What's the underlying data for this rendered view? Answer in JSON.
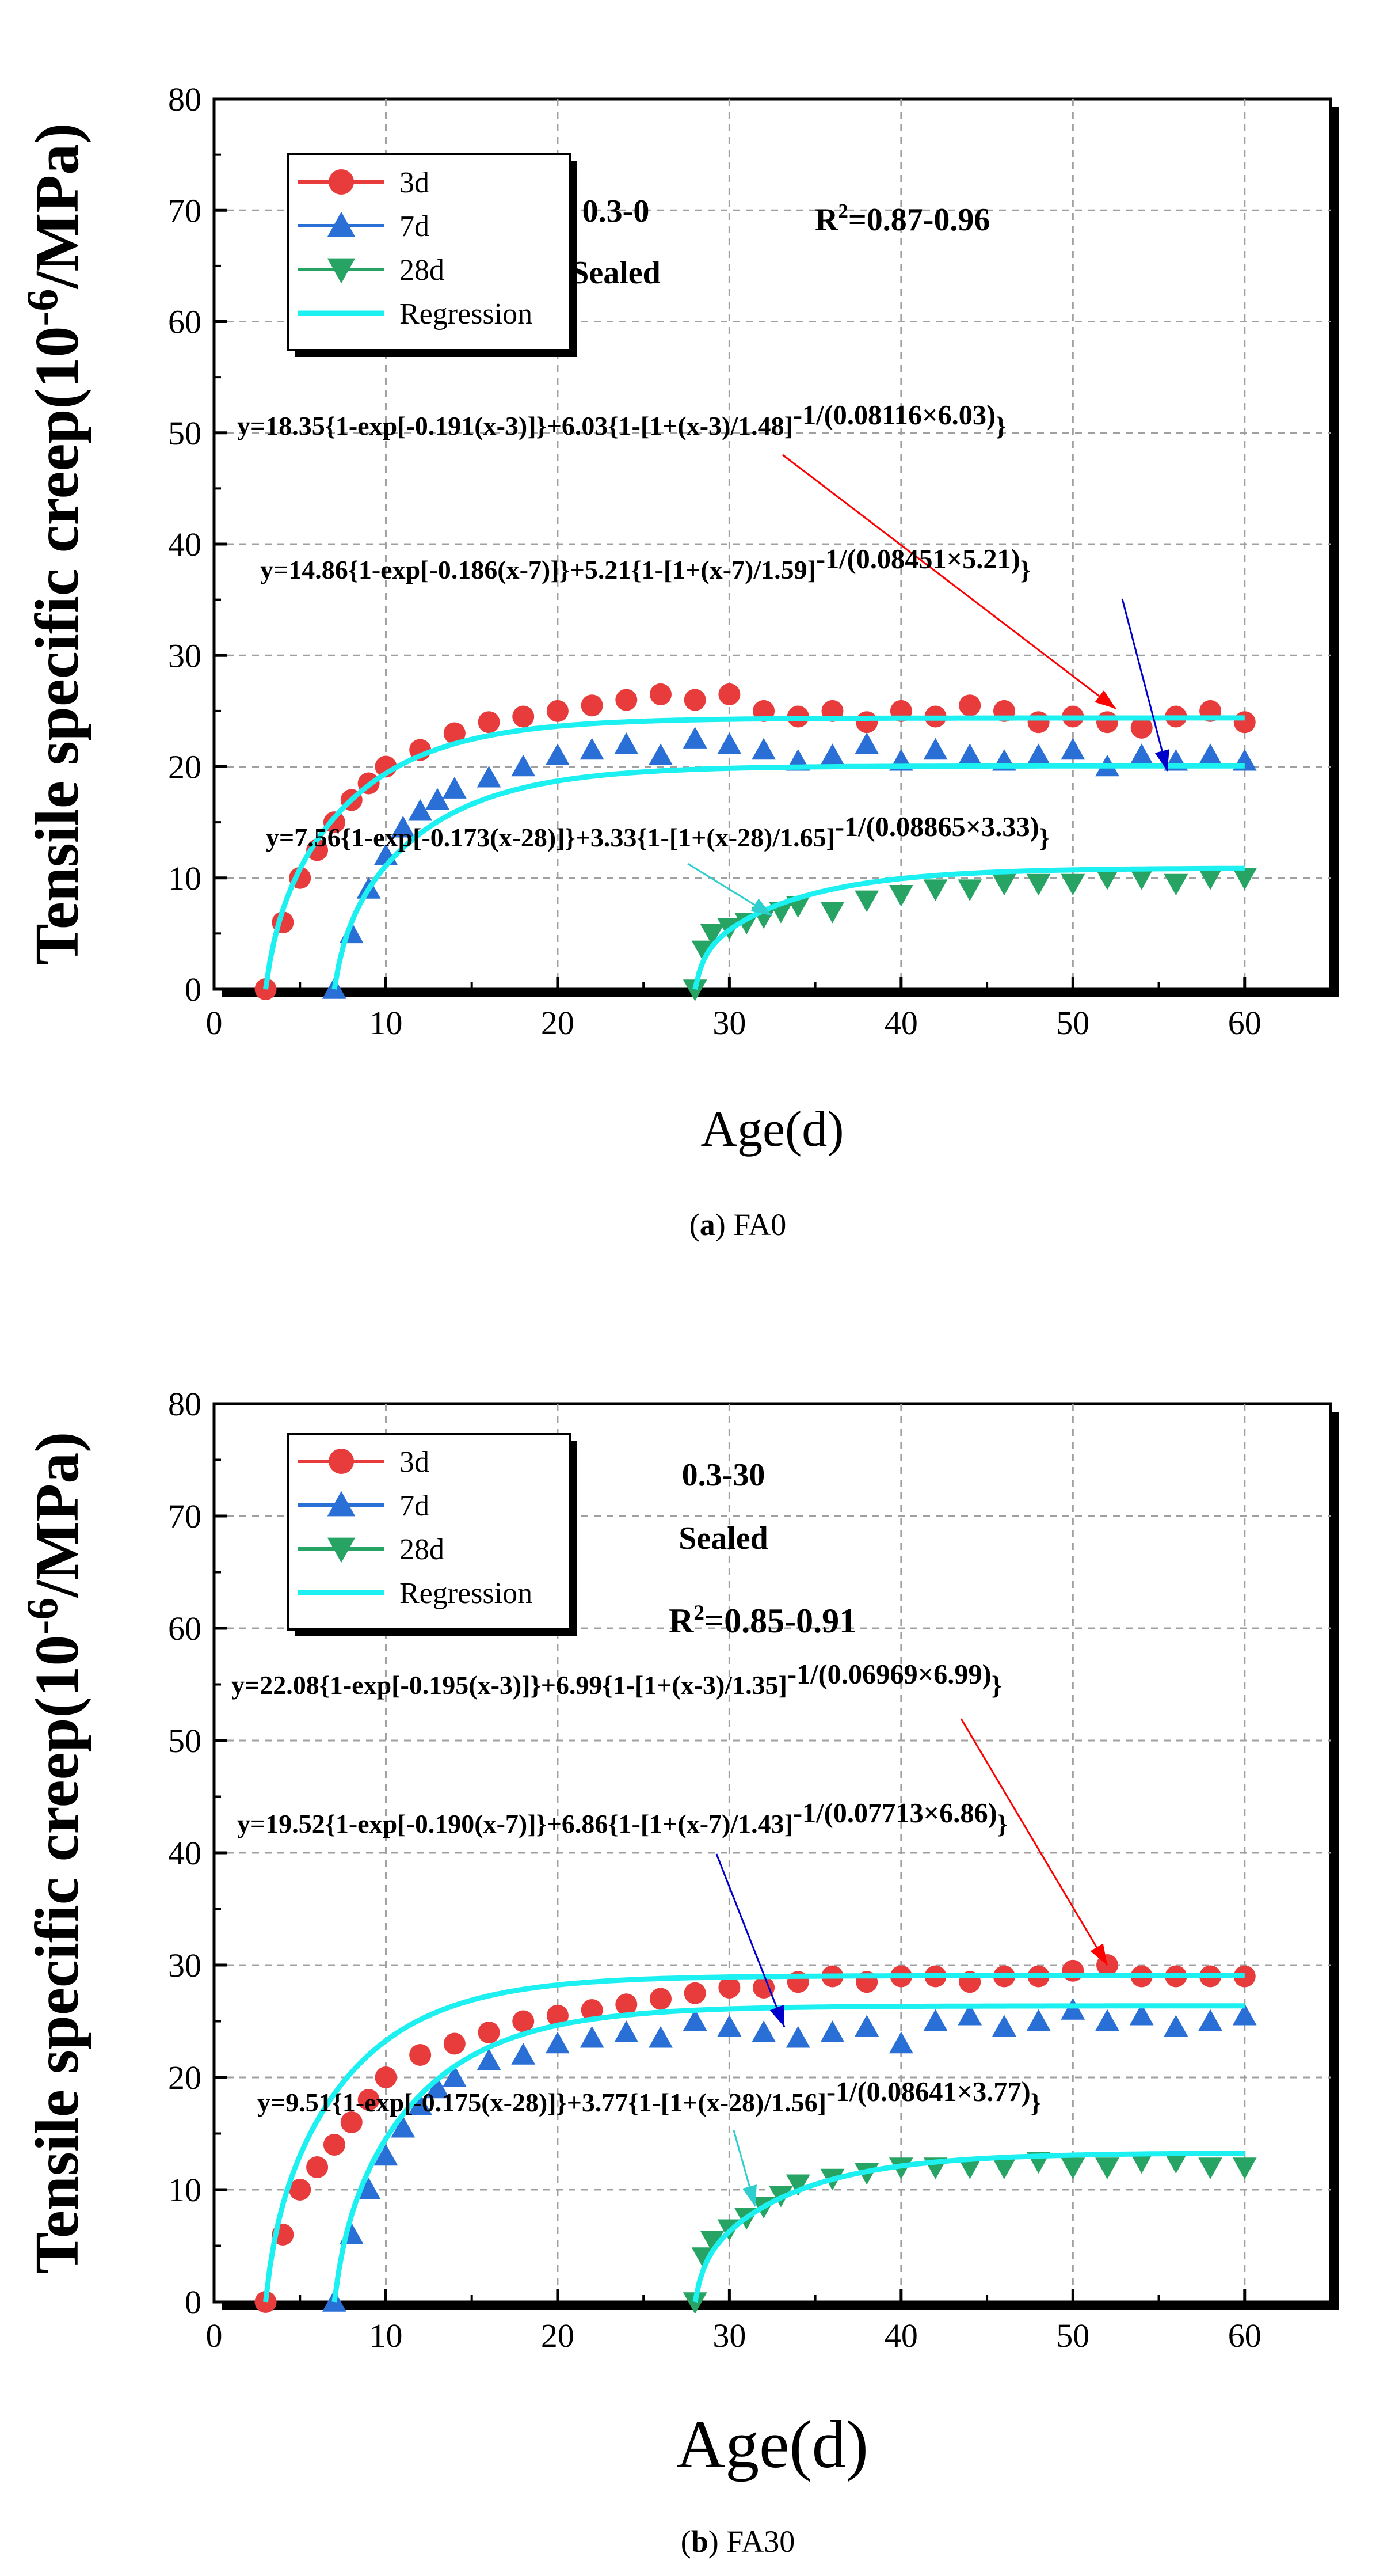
{
  "figure": {
    "colors": {
      "series_3d": "#e83c3c",
      "series_7d": "#2a6fd6",
      "series_28d": "#27a464",
      "regression": "#1cf0f0",
      "arrow_3d": "#ff0000",
      "arrow_7d": "#0000cc",
      "arrow_28d": "#2ecece",
      "grid": "#a0a0a0",
      "axis": "#000000"
    }
  },
  "chart_data": [
    {
      "type": "scatter",
      "id": "a",
      "caption_letter": "a",
      "caption_text": " FA0",
      "xlabel": "Age(d)",
      "ylabel_main": "Tensile specific creep(10",
      "ylabel_sup": "-6",
      "ylabel_tail": "/MPa)",
      "xlim": [
        0,
        65
      ],
      "ylim": [
        0,
        80
      ],
      "xticks": [
        0,
        10,
        20,
        30,
        40,
        50,
        60
      ],
      "yticks": [
        0,
        10,
        20,
        30,
        40,
        50,
        60,
        70,
        80
      ],
      "grid": true,
      "legend": {
        "position": "top-left",
        "entries": [
          "3d",
          "7d",
          "28d",
          "Regression"
        ]
      },
      "mix_label": "0.3-0",
      "condition_label": "Sealed",
      "r2_prefix": "R",
      "r2_sup": "2",
      "r2_value": "=0.87-0.96",
      "equations": [
        {
          "base": "y=18.35{1-exp[-0.191(x-3)]}+6.03{1-[1+(x-3)/1.48]",
          "sup": "-1/(0.08116×6.03)",
          "tail": "}"
        },
        {
          "base": "y=14.86{1-exp[-0.186(x-7)]}+5.21{1-[1+(x-7)/1.59]",
          "sup": "-1/(0.08451×5.21)",
          "tail": "}"
        },
        {
          "base": "y=7.56{1-exp[-0.173(x-28)]}+3.33{1-[1+(x-28)/1.65]",
          "sup": "-1/(0.08865×3.33)",
          "tail": "}"
        }
      ],
      "series": [
        {
          "name": "3d",
          "marker": "circle",
          "t0": 3,
          "x": [
            3,
            4,
            5,
            6,
            7,
            8,
            9,
            10,
            12,
            14,
            16,
            18,
            20,
            22,
            24,
            26,
            28,
            30,
            32,
            34,
            36,
            38,
            40,
            42,
            44,
            46,
            48,
            50,
            52,
            54,
            56,
            58,
            60
          ],
          "y": [
            0,
            6,
            10,
            12.5,
            15,
            17,
            18.5,
            20,
            21.5,
            23,
            24,
            24.5,
            25,
            25.5,
            26,
            26.5,
            26,
            26.5,
            25,
            24.5,
            25,
            24,
            25,
            24.5,
            25.5,
            25,
            24,
            24.5,
            24,
            23.5,
            24.5,
            25,
            24
          ]
        },
        {
          "name": "7d",
          "marker": "triangle-up",
          "t0": 7,
          "x": [
            7,
            8,
            9,
            10,
            11,
            12,
            13,
            14,
            16,
            18,
            20,
            22,
            24,
            26,
            28,
            30,
            32,
            34,
            36,
            38,
            40,
            42,
            44,
            46,
            48,
            50,
            52,
            54,
            56,
            58,
            60
          ],
          "y": [
            0,
            5,
            9,
            12,
            14.5,
            16,
            17,
            18,
            19,
            20,
            21,
            21.5,
            22,
            21,
            22.5,
            22,
            21.5,
            20.5,
            21,
            22,
            20.5,
            21.5,
            21,
            20.5,
            21,
            21.5,
            20,
            21,
            20.5,
            21,
            20.5
          ]
        },
        {
          "name": "28d",
          "marker": "triangle-down",
          "t0": 28,
          "x": [
            28,
            28.5,
            29,
            30,
            31,
            32,
            33,
            34,
            36,
            38,
            40,
            42,
            44,
            46,
            48,
            50,
            52,
            54,
            56,
            58,
            60
          ],
          "y": [
            0,
            3.5,
            5,
            5.5,
            6,
            6.5,
            7,
            7.5,
            7,
            8,
            8.5,
            9,
            9,
            9.5,
            9.5,
            9.5,
            10,
            10,
            9.5,
            10,
            10
          ]
        }
      ],
      "regression": [
        {
          "t0": 3,
          "a": 18.35,
          "k": 0.191,
          "b": 6.03,
          "c": 1.48,
          "d": 0.08116
        },
        {
          "t0": 7,
          "a": 14.86,
          "k": 0.186,
          "b": 5.21,
          "c": 1.59,
          "d": 0.08451
        },
        {
          "t0": 28,
          "a": 7.56,
          "k": 0.173,
          "b": 3.33,
          "c": 1.65,
          "d": 0.08865
        }
      ]
    },
    {
      "type": "scatter",
      "id": "b",
      "caption_letter": "b",
      "caption_text": " FA30",
      "xlabel": "Age(d)",
      "ylabel_main": "Tensile specific creep(10",
      "ylabel_sup": "-6",
      "ylabel_tail": "/MPa)",
      "xlim": [
        0,
        65
      ],
      "ylim": [
        0,
        80
      ],
      "xticks": [
        0,
        10,
        20,
        30,
        40,
        50,
        60
      ],
      "yticks": [
        0,
        10,
        20,
        30,
        40,
        50,
        60,
        70,
        80
      ],
      "grid": true,
      "legend": {
        "position": "top-left",
        "entries": [
          "3d",
          "7d",
          "28d",
          "Regression"
        ]
      },
      "mix_label": "0.3-30",
      "condition_label": "Sealed",
      "r2_prefix": "R",
      "r2_sup": "2",
      "r2_value": "=0.85-0.91",
      "equations": [
        {
          "base": "y=22.08{1-exp[-0.195(x-3)]}+6.99{1-[1+(x-3)/1.35]",
          "sup": "-1/(0.06969×6.99)",
          "tail": "}"
        },
        {
          "base": "y=19.52{1-exp[-0.190(x-7)]}+6.86{1-[1+(x-7)/1.43]",
          "sup": "-1/(0.07713×6.86)",
          "tail": "}"
        },
        {
          "base": "y=9.51{1-exp[-0.175(x-28)]}+3.77{1-[1+(x-28)/1.56]",
          "sup": "-1/(0.08641×3.77)",
          "tail": "}"
        }
      ],
      "series": [
        {
          "name": "3d",
          "marker": "circle",
          "t0": 3,
          "x": [
            3,
            4,
            5,
            6,
            7,
            8,
            9,
            10,
            12,
            14,
            16,
            18,
            20,
            22,
            24,
            26,
            28,
            30,
            32,
            34,
            36,
            38,
            40,
            42,
            44,
            46,
            48,
            50,
            52,
            54,
            56,
            58,
            60
          ],
          "y": [
            0,
            6,
            10,
            12,
            14,
            16,
            18,
            20,
            22,
            23,
            24,
            25,
            25.5,
            26,
            26.5,
            27,
            27.5,
            28,
            28,
            28.5,
            29,
            28.5,
            29,
            29,
            28.5,
            29,
            29,
            29.5,
            30,
            29,
            29,
            29,
            29
          ]
        },
        {
          "name": "7d",
          "marker": "triangle-up",
          "t0": 7,
          "x": [
            7,
            8,
            9,
            10,
            11,
            12,
            13,
            14,
            16,
            18,
            20,
            22,
            24,
            26,
            28,
            30,
            32,
            34,
            36,
            38,
            40,
            42,
            44,
            46,
            48,
            50,
            52,
            54,
            56,
            58,
            60
          ],
          "y": [
            0,
            6,
            10,
            13,
            15.5,
            17.5,
            19,
            20,
            21.5,
            22,
            23,
            23.5,
            24,
            23.5,
            25,
            24.5,
            24,
            23.5,
            24,
            24.5,
            23,
            25,
            25.5,
            24.5,
            25,
            26,
            25,
            25.5,
            24.5,
            25,
            25.5
          ]
        },
        {
          "name": "28d",
          "marker": "triangle-down",
          "t0": 28,
          "x": [
            28,
            28.5,
            29,
            30,
            31,
            32,
            33,
            34,
            36,
            38,
            40,
            42,
            44,
            46,
            48,
            50,
            52,
            54,
            56,
            58,
            60
          ],
          "y": [
            0,
            4,
            5.5,
            6.5,
            7.5,
            8.5,
            9.5,
            10.5,
            11,
            11.5,
            12,
            12,
            12,
            12,
            12.5,
            12,
            12,
            12.5,
            12.5,
            12,
            12
          ]
        }
      ],
      "regression": [
        {
          "t0": 3,
          "a": 22.08,
          "k": 0.195,
          "b": 6.99,
          "c": 1.35,
          "d": 0.06969
        },
        {
          "t0": 7,
          "a": 19.52,
          "k": 0.19,
          "b": 6.86,
          "c": 1.43,
          "d": 0.07713
        },
        {
          "t0": 28,
          "a": 9.51,
          "k": 0.175,
          "b": 3.77,
          "c": 1.56,
          "d": 0.08641
        }
      ]
    }
  ]
}
